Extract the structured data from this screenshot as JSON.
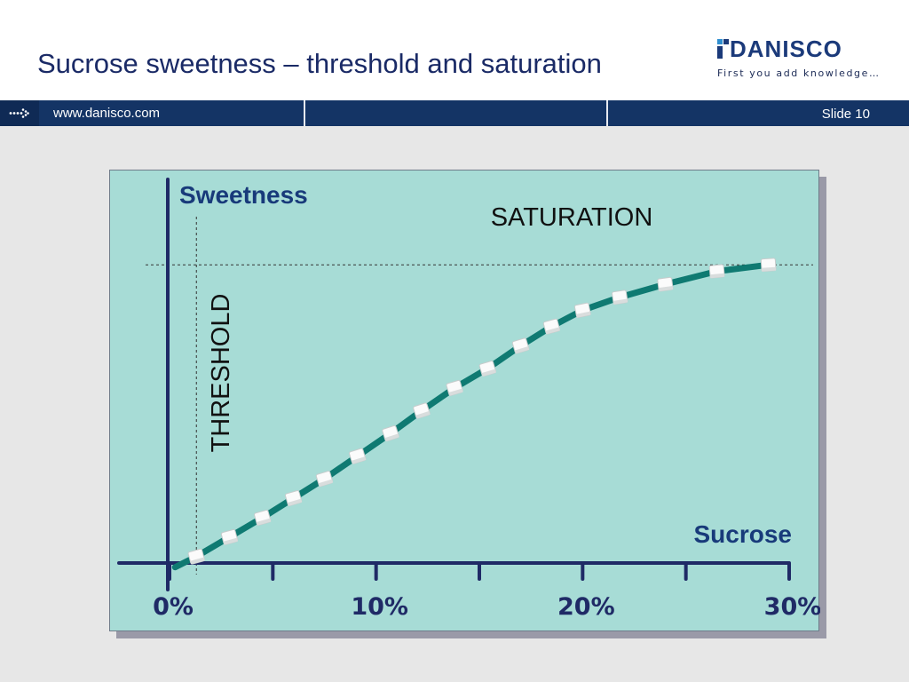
{
  "slide": {
    "title": "Sucrose sweetness – threshold and saturation",
    "url": "www.danisco.com",
    "slide_number": "Slide 10"
  },
  "logo": {
    "brand": "DANISCO",
    "tagline": "First you add knowledge…"
  },
  "colors": {
    "banner": "#143465",
    "panel": "#a7dcd6",
    "axis": "#1f2a66",
    "curve": "#0f7a72",
    "label": "#183a7a"
  },
  "chart_data": {
    "type": "line",
    "ylabel": "Sweetness",
    "xlabel": "Sucrose",
    "x_ticks": [
      "0%",
      "10%",
      "20%",
      "30%"
    ],
    "xlim": [
      0,
      30
    ],
    "ylim": [
      0,
      1
    ],
    "threshold": {
      "label": "THRESHOLD",
      "x": 1.3
    },
    "saturation": {
      "label": "SATURATION",
      "y": 0.92
    },
    "series": [
      {
        "x": [
          1.3,
          2.9,
          4.5,
          6.0,
          7.5,
          9.1,
          10.7,
          12.2,
          13.8,
          15.4,
          17.0,
          18.5,
          20.0,
          21.8,
          24.0,
          26.5,
          29.0
        ],
        "y": [
          0.02,
          0.08,
          0.14,
          0.2,
          0.26,
          0.33,
          0.4,
          0.47,
          0.54,
          0.6,
          0.67,
          0.73,
          0.78,
          0.82,
          0.86,
          0.9,
          0.92
        ]
      }
    ]
  }
}
